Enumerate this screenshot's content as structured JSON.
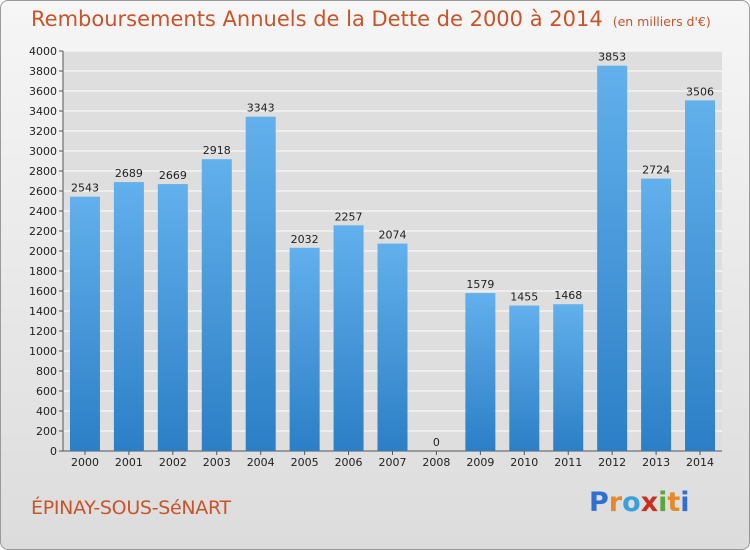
{
  "header": {
    "title": "Remboursements Annuels de la Dette de 2000 à 2014",
    "subtitle": "(en milliers d'€)"
  },
  "footer": {
    "city": "ÉPINAY-SOUS-SéNART",
    "logo": "Proxiti"
  },
  "colors": {
    "title": "#c9542a",
    "bar_light": "#62b0ec",
    "bar_dark": "#2c7fc6",
    "logo": [
      "#2e6fd1",
      "#e5892b",
      "#3aa0d8",
      "#c8311f",
      "#5aa83a",
      "#e5892b",
      "#2e6fd1"
    ]
  },
  "chart_data": {
    "type": "bar",
    "title": "Remboursements Annuels de la Dette de 2000 à 2014",
    "subtitle": "(en milliers d'€)",
    "categories": [
      "2000",
      "2001",
      "2002",
      "2003",
      "2004",
      "2005",
      "2006",
      "2007",
      "2008",
      "2009",
      "2010",
      "2011",
      "2012",
      "2013",
      "2014"
    ],
    "values": [
      2543,
      2689,
      2669,
      2918,
      3343,
      2032,
      2257,
      2074,
      0,
      1579,
      1455,
      1468,
      3853,
      2724,
      3506
    ],
    "xlabel": "",
    "ylabel": "",
    "ylim": [
      0,
      4000
    ],
    "ytick_step": 200,
    "grid": true
  }
}
